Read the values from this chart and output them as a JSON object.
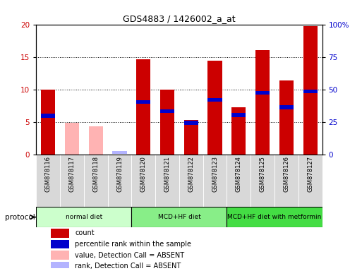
{
  "title": "GDS4883 / 1426002_a_at",
  "samples": [
    "GSM878116",
    "GSM878117",
    "GSM878118",
    "GSM878119",
    "GSM878120",
    "GSM878121",
    "GSM878122",
    "GSM878123",
    "GSM878124",
    "GSM878125",
    "GSM878126",
    "GSM878127"
  ],
  "count_values": [
    10.0,
    0,
    0,
    0,
    14.6,
    10.0,
    5.3,
    14.4,
    7.3,
    16.0,
    11.4,
    19.7
  ],
  "percentile_values": [
    30.0,
    0,
    0,
    0,
    40.5,
    33.5,
    24.5,
    42.0,
    30.5,
    47.5,
    36.5,
    48.5
  ],
  "absent_count_values": [
    0,
    4.9,
    4.4,
    0,
    0,
    0,
    0,
    0,
    0,
    0,
    0,
    0
  ],
  "absent_rank_values": [
    0,
    0,
    0,
    1.7,
    0,
    0,
    0,
    0,
    0,
    0,
    0,
    0
  ],
  "count_color": "#cc0000",
  "percentile_color": "#0000cc",
  "absent_count_color": "#ffb3b3",
  "absent_rank_color": "#b3b3ff",
  "ylim_left": [
    0,
    20
  ],
  "ylim_right": [
    0,
    100
  ],
  "yticks_left": [
    0,
    5,
    10,
    15,
    20
  ],
  "yticks_right": [
    0,
    25,
    50,
    75,
    100
  ],
  "ytick_labels_right": [
    "0",
    "25",
    "50",
    "75",
    "100%"
  ],
  "groups": [
    {
      "label": "normal diet",
      "start": 0,
      "end": 3,
      "color": "#ccffcc"
    },
    {
      "label": "MCD+HF diet",
      "start": 4,
      "end": 7,
      "color": "#88ee88"
    },
    {
      "label": "MCD+HF diet with metformin",
      "start": 8,
      "end": 11,
      "color": "#44dd44"
    }
  ],
  "protocol_label": "protocol",
  "bar_width": 0.6,
  "legend_items": [
    {
      "label": "count",
      "color": "#cc0000"
    },
    {
      "label": "percentile rank within the sample",
      "color": "#0000cc"
    },
    {
      "label": "value, Detection Call = ABSENT",
      "color": "#ffb3b3"
    },
    {
      "label": "rank, Detection Call = ABSENT",
      "color": "#b3b3ff"
    }
  ],
  "sample_box_color": "#d8d8d8",
  "fig_bg": "#ffffff"
}
